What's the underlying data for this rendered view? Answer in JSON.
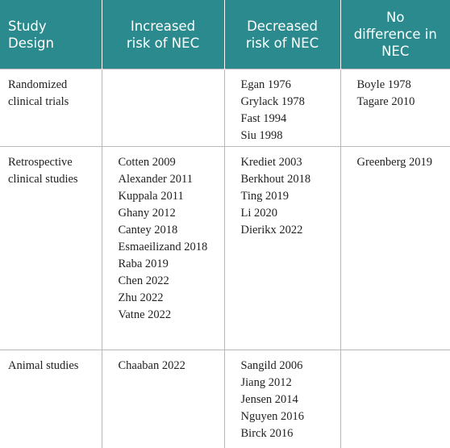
{
  "table": {
    "header": [
      [
        "Study",
        "Design"
      ],
      [
        "Increased",
        "risk of NEC"
      ],
      [
        "Decreased",
        "risk of NEC"
      ],
      [
        "No",
        "difference in",
        "NEC"
      ]
    ],
    "rows": [
      [
        [
          "Randomized",
          "clinical trials"
        ],
        [],
        [
          "Egan 1976",
          "Grylack 1978",
          "Fast 1994",
          "Siu 1998"
        ],
        [
          "Boyle 1978",
          "Tagare 2010"
        ]
      ],
      [
        [
          "Retrospective",
          "clinical studies"
        ],
        [
          "Cotten 2009",
          "Alexander 2011",
          "Kuppala 2011",
          "Ghany 2012",
          "Cantey 2018",
          "Esmaeilizand 2018",
          "Raba 2019",
          "Chen 2022",
          "Zhu 2022",
          "Vatne 2022"
        ],
        [
          "Krediet 2003",
          "Berkhout 2018",
          "Ting 2019",
          "Li 2020",
          "Dierikx 2022"
        ],
        [
          "Greenberg 2019"
        ]
      ],
      [
        [
          "Animal studies"
        ],
        [
          "Chaaban 2022"
        ],
        [
          "Sangild 2006",
          "Jiang 2012",
          "Jensen 2014",
          "Nguyen 2016",
          "Birck 2016"
        ],
        []
      ]
    ]
  }
}
